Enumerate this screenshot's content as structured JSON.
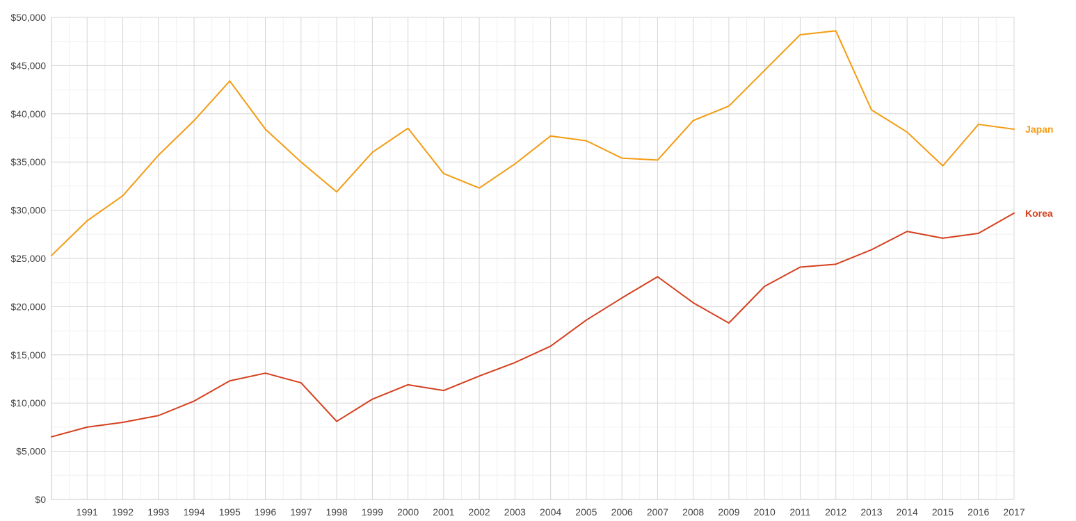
{
  "chart_data": {
    "type": "line",
    "title": "",
    "xlabel": "",
    "ylabel": "",
    "x": [
      1990,
      1991,
      1992,
      1993,
      1994,
      1995,
      1996,
      1997,
      1998,
      1999,
      2000,
      2001,
      2002,
      2003,
      2004,
      2005,
      2006,
      2007,
      2008,
      2009,
      2010,
      2011,
      2012,
      2013,
      2014,
      2015,
      2016,
      2017
    ],
    "x_tick_labels": [
      "1991",
      "1992",
      "1993",
      "1994",
      "1995",
      "1996",
      "1997",
      "1998",
      "1999",
      "2000",
      "2001",
      "2002",
      "2003",
      "2004",
      "2005",
      "2006",
      "2007",
      "2008",
      "2009",
      "2010",
      "2011",
      "2012",
      "2013",
      "2014",
      "2015",
      "2016",
      "2017"
    ],
    "xlim": [
      1990,
      2017
    ],
    "ylim": [
      0,
      50000
    ],
    "y_ticks": [
      0,
      5000,
      10000,
      15000,
      20000,
      25000,
      30000,
      35000,
      40000,
      45000,
      50000
    ],
    "y_tick_labels": [
      "$0",
      "$5,000",
      "$10,000",
      "$15,000",
      "$20,000",
      "$25,000",
      "$30,000",
      "$35,000",
      "$40,000",
      "$45,000",
      "$50,000"
    ],
    "grid": true,
    "legend": "direct labels at right end of lines",
    "series": [
      {
        "name": "Japan",
        "color": "#f39c12",
        "values": [
          25300,
          28900,
          31500,
          35700,
          39300,
          43400,
          38400,
          35000,
          31900,
          36000,
          38500,
          33800,
          32300,
          34800,
          37700,
          37200,
          35400,
          35200,
          39300,
          40800,
          44500,
          48200,
          48600,
          40400,
          38100,
          34600,
          38900,
          38400
        ]
      },
      {
        "name": "Korea",
        "color": "#d4401e",
        "values": [
          6500,
          7500,
          8000,
          8700,
          10200,
          12300,
          13100,
          12100,
          8100,
          10400,
          11900,
          11300,
          12800,
          14200,
          15900,
          18600,
          20900,
          23100,
          20400,
          18300,
          22100,
          24100,
          24400,
          25900,
          27800,
          27100,
          27600,
          29700
        ]
      }
    ]
  }
}
